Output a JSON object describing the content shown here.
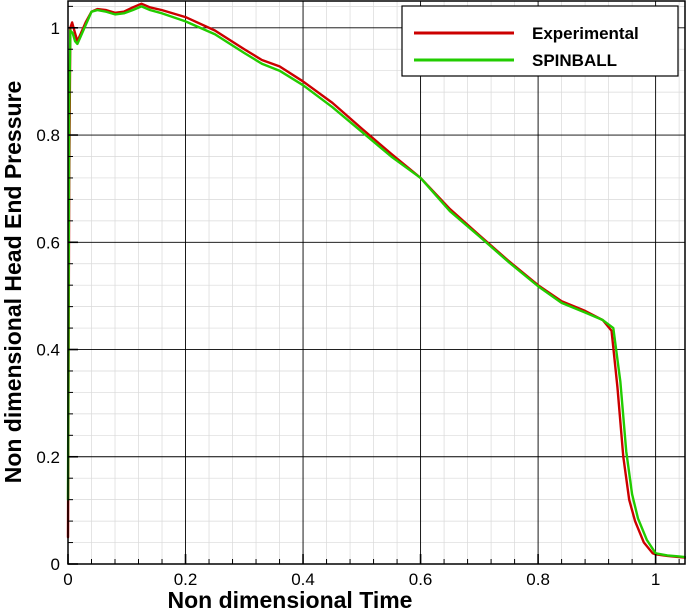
{
  "chart_data": {
    "type": "line",
    "title": "",
    "xlabel": "Non dimensional Time",
    "ylabel": "Non dimensional Head End Pressure",
    "xlim": [
      0,
      1.05
    ],
    "ylim": [
      0,
      1.05
    ],
    "x_ticks": [
      0,
      0.2,
      0.4,
      0.6,
      0.8,
      1
    ],
    "x_tick_labels": [
      "0",
      "0.2",
      "0.4",
      "0.6",
      "0.8",
      "1"
    ],
    "y_ticks": [
      0,
      0.2,
      0.4,
      0.6,
      0.8,
      1
    ],
    "y_tick_labels": [
      "0",
      "0.2",
      "0.4",
      "0.6",
      "0.8",
      "1"
    ],
    "grid": true,
    "legend_position": "top-right",
    "series": [
      {
        "name": "Experimental",
        "color": "#cc0000",
        "points": [
          [
            0.0,
            0.05
          ],
          [
            0.002,
            0.72
          ],
          [
            0.004,
            1.0
          ],
          [
            0.007,
            1.01
          ],
          [
            0.012,
            0.99
          ],
          [
            0.016,
            0.975
          ],
          [
            0.022,
            0.99
          ],
          [
            0.03,
            1.01
          ],
          [
            0.04,
            1.03
          ],
          [
            0.05,
            1.035
          ],
          [
            0.065,
            1.033
          ],
          [
            0.08,
            1.028
          ],
          [
            0.095,
            1.03
          ],
          [
            0.11,
            1.038
          ],
          [
            0.125,
            1.045
          ],
          [
            0.14,
            1.038
          ],
          [
            0.16,
            1.033
          ],
          [
            0.2,
            1.02
          ],
          [
            0.25,
            0.995
          ],
          [
            0.3,
            0.96
          ],
          [
            0.33,
            0.94
          ],
          [
            0.36,
            0.928
          ],
          [
            0.4,
            0.9
          ],
          [
            0.45,
            0.86
          ],
          [
            0.5,
            0.812
          ],
          [
            0.55,
            0.765
          ],
          [
            0.6,
            0.72
          ],
          [
            0.65,
            0.662
          ],
          [
            0.7,
            0.613
          ],
          [
            0.75,
            0.565
          ],
          [
            0.8,
            0.52
          ],
          [
            0.84,
            0.49
          ],
          [
            0.88,
            0.472
          ],
          [
            0.91,
            0.455
          ],
          [
            0.925,
            0.435
          ],
          [
            0.935,
            0.33
          ],
          [
            0.945,
            0.2
          ],
          [
            0.955,
            0.12
          ],
          [
            0.965,
            0.08
          ],
          [
            0.98,
            0.04
          ],
          [
            0.995,
            0.02
          ],
          [
            1.0,
            0.018
          ],
          [
            1.02,
            0.015
          ],
          [
            1.04,
            0.013
          ],
          [
            1.05,
            0.012
          ]
        ]
      },
      {
        "name": "SPINBALL",
        "color": "#22cc00",
        "points": [
          [
            0.0,
            0.12
          ],
          [
            0.002,
            0.85
          ],
          [
            0.004,
            0.995
          ],
          [
            0.008,
            0.99
          ],
          [
            0.012,
            0.975
          ],
          [
            0.016,
            0.97
          ],
          [
            0.022,
            0.985
          ],
          [
            0.03,
            1.005
          ],
          [
            0.04,
            1.03
          ],
          [
            0.05,
            1.033
          ],
          [
            0.065,
            1.03
          ],
          [
            0.08,
            1.025
          ],
          [
            0.095,
            1.027
          ],
          [
            0.11,
            1.033
          ],
          [
            0.125,
            1.04
          ],
          [
            0.14,
            1.033
          ],
          [
            0.16,
            1.027
          ],
          [
            0.2,
            1.012
          ],
          [
            0.25,
            0.988
          ],
          [
            0.3,
            0.953
          ],
          [
            0.33,
            0.933
          ],
          [
            0.36,
            0.92
          ],
          [
            0.4,
            0.893
          ],
          [
            0.45,
            0.852
          ],
          [
            0.5,
            0.806
          ],
          [
            0.55,
            0.76
          ],
          [
            0.6,
            0.72
          ],
          [
            0.65,
            0.658
          ],
          [
            0.7,
            0.611
          ],
          [
            0.75,
            0.563
          ],
          [
            0.8,
            0.518
          ],
          [
            0.84,
            0.487
          ],
          [
            0.88,
            0.469
          ],
          [
            0.91,
            0.455
          ],
          [
            0.928,
            0.44
          ],
          [
            0.94,
            0.34
          ],
          [
            0.95,
            0.21
          ],
          [
            0.96,
            0.13
          ],
          [
            0.97,
            0.085
          ],
          [
            0.985,
            0.045
          ],
          [
            1.0,
            0.02
          ],
          [
            1.02,
            0.016
          ],
          [
            1.04,
            0.014
          ],
          [
            1.05,
            0.013
          ]
        ]
      }
    ]
  }
}
